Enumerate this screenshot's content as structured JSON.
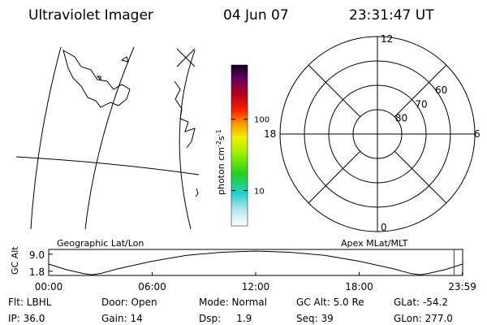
{
  "header": {
    "title": "Ultraviolet Imager",
    "date": "04 Jun 07",
    "time": "23:31:47 UT"
  },
  "colorbar": {
    "label": [
      "photon cm",
      "-2",
      "s",
      "-1"
    ],
    "log": true,
    "lim": [
      3.2,
      575
    ],
    "ticks": [
      10,
      100
    ]
  },
  "polar": {
    "rlim": [
      90,
      50
    ],
    "rings": [
      80,
      70,
      60
    ],
    "mlt": [
      12,
      18,
      6,
      0
    ]
  },
  "altitude": {
    "ylabel": "GC Alt",
    "left_label": "Geographic Lat/Lon",
    "right_label": "Apex  MLat/MLT",
    "xlim": [
      0,
      24
    ],
    "ylim": [
      0,
      11
    ],
    "xticks": [
      {
        "value": 0,
        "label": "00:00"
      },
      {
        "value": 6,
        "label": "06:00"
      },
      {
        "value": 12,
        "label": "12:00"
      },
      {
        "value": 18,
        "label": "18:00"
      },
      {
        "value": 23.98,
        "label": "23:59"
      }
    ],
    "yticks": [
      {
        "value": 1.8,
        "label": "1.8"
      },
      {
        "value": 9.0,
        "label": "9.0"
      }
    ],
    "x": [
      0,
      1,
      2,
      2.5,
      3,
      4,
      6,
      8,
      10,
      12,
      14,
      16,
      18,
      20,
      21,
      21.5,
      22,
      23,
      24
    ],
    "values": [
      4.8,
      2.5,
      0.8,
      0.3,
      0.8,
      2.8,
      6,
      8.5,
      9.8,
      10.3,
      9.8,
      8.5,
      6,
      2.8,
      0.8,
      0.3,
      0.8,
      2.5,
      4.8
    ],
    "marker": 23.5,
    "marker_color": "#cc0000"
  },
  "status": [
    [
      "Flt: LBHL",
      "Door: Open",
      "Mode: Normal",
      "GC Alt: 5.0 Re",
      "GLat: -54.2"
    ],
    [
      "IP: 36.0",
      "Gain: 14",
      "Dsp:     1.9",
      "Seq: 39",
      "GLon: 277.0"
    ]
  ]
}
